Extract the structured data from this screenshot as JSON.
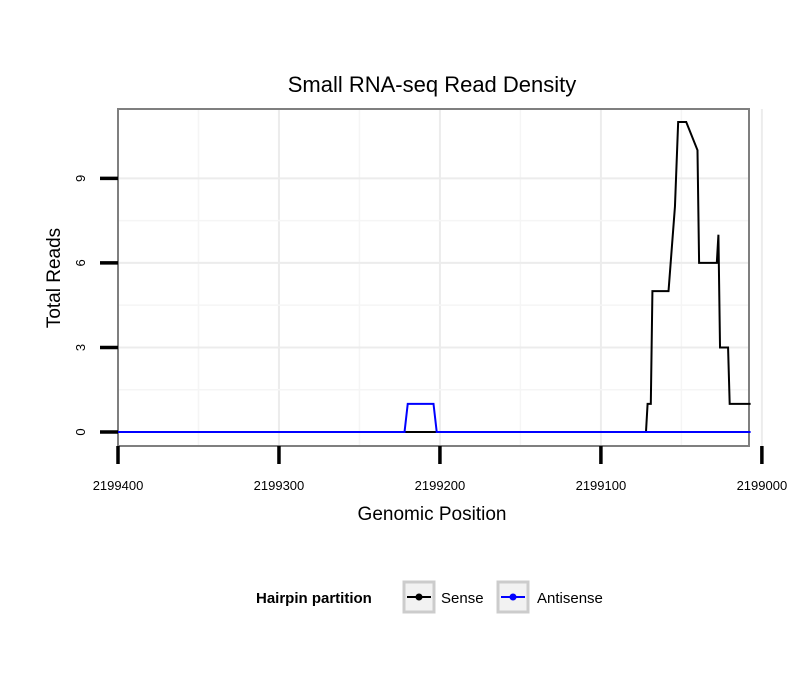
{
  "chart_data": {
    "type": "line",
    "title": "Small RNA-seq Read Density",
    "xlabel": "Genomic Position",
    "ylabel": "Total Reads",
    "x_reversed": true,
    "xlim": [
      2199008,
      2199400
    ],
    "ylim": [
      0,
      11
    ],
    "x_ticks": [
      2199400,
      2199300,
      2199200,
      2199100,
      2199000
    ],
    "x_tick_labels": [
      "2199400",
      "2199300",
      "2199200",
      "2199100",
      "2199000"
    ],
    "y_ticks": [
      0,
      3,
      6,
      9
    ],
    "y_tick_labels": [
      "0",
      "3",
      "6",
      "9"
    ],
    "grid": true,
    "legend": {
      "title": "Hairpin partition",
      "placement": "bottom",
      "entries": [
        {
          "name": "Sense",
          "color": "#000000"
        },
        {
          "name": "Antisense",
          "color": "#0000ff"
        }
      ]
    },
    "series": [
      {
        "name": "Sense",
        "color": "#000000",
        "points": [
          [
            2199007,
            1
          ],
          [
            2199020,
            1
          ],
          [
            2199021,
            3
          ],
          [
            2199026,
            3
          ],
          [
            2199027,
            7
          ],
          [
            2199028,
            6
          ],
          [
            2199039,
            6
          ],
          [
            2199040,
            10
          ],
          [
            2199047,
            11
          ],
          [
            2199052,
            11
          ],
          [
            2199054,
            8
          ],
          [
            2199058,
            5
          ],
          [
            2199068,
            5
          ],
          [
            2199069,
            1
          ],
          [
            2199071,
            1
          ],
          [
            2199072,
            0
          ],
          [
            2199404,
            0
          ]
        ]
      },
      {
        "name": "Antisense",
        "color": "#0000ff",
        "points": [
          [
            2199007,
            0
          ],
          [
            2199202,
            0
          ],
          [
            2199204,
            1
          ],
          [
            2199220,
            1
          ],
          [
            2199222,
            0
          ],
          [
            2199404,
            0
          ]
        ]
      }
    ]
  }
}
